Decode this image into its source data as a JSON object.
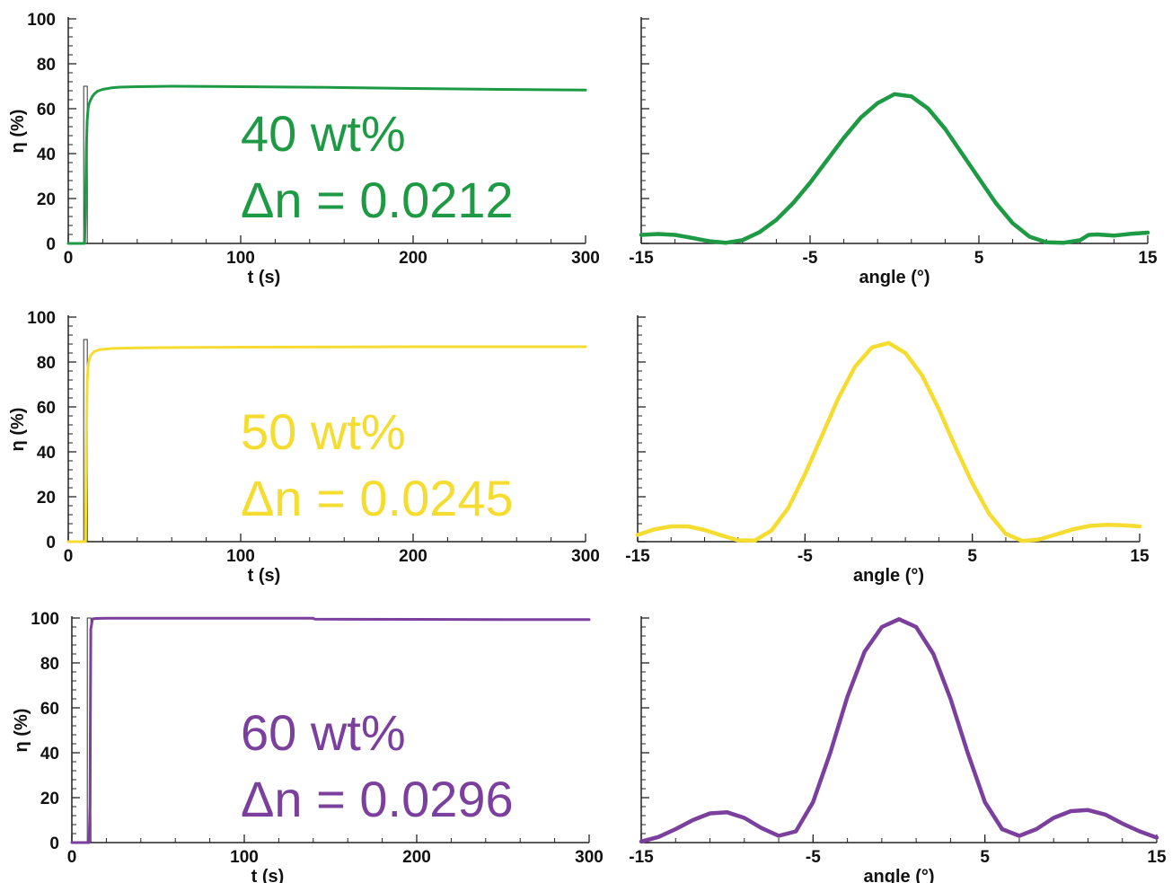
{
  "chart_data": [
    {
      "type": "line",
      "panel": "top-left",
      "xlabel": "t (s)",
      "ylabel": "η (%)",
      "xlim": [
        0,
        300
      ],
      "ylim": [
        0,
        100
      ],
      "xticks": [
        "0",
        "100",
        "200",
        "300"
      ],
      "yticks": [
        "0",
        "20",
        "40",
        "60",
        "80",
        "100"
      ],
      "color": "#1e9a45",
      "annotations": [
        "40 wt%",
        "Δn = 0.0212"
      ],
      "marker": {
        "x": 10,
        "top": 70
      },
      "series": [
        {
          "x": [
            0,
            9.5,
            10,
            10.5,
            11,
            11.5,
            12,
            13,
            14,
            15,
            17,
            20,
            25,
            30,
            40,
            60,
            100,
            150,
            200,
            250,
            300
          ],
          "values": [
            0,
            0,
            17,
            43,
            55,
            60,
            62,
            64,
            65.5,
            66.5,
            67.8,
            68.6,
            69.3,
            69.6,
            69.8,
            70,
            69.8,
            69.5,
            69,
            68.6,
            68.3
          ]
        }
      ]
    },
    {
      "type": "line",
      "panel": "top-right",
      "xlabel": "angle (°)",
      "xlim": [
        -15,
        15
      ],
      "ylim": [
        0,
        100
      ],
      "xticks": [
        "-15",
        "-5",
        "5",
        "15"
      ],
      "color": "#1e9a45",
      "series": [
        {
          "x": [
            -15,
            -14,
            -13,
            -12,
            -11,
            -10,
            -9,
            -8,
            -7,
            -6,
            -5,
            -4,
            -3,
            -2,
            -1,
            0,
            1,
            2,
            3,
            4,
            5,
            6,
            7,
            8,
            9,
            10,
            11,
            11.5,
            12,
            13,
            14,
            15
          ],
          "values": [
            3.8,
            4.2,
            3.8,
            2.5,
            1,
            0.3,
            1.5,
            5,
            10.5,
            18,
            27,
            37,
            47,
            56,
            62.5,
            66.5,
            65.5,
            60,
            51,
            40,
            29,
            18,
            9,
            3,
            0.5,
            0.3,
            1.5,
            3.8,
            4,
            3.5,
            4.3,
            4.8
          ]
        }
      ]
    },
    {
      "type": "line",
      "panel": "middle-left",
      "xlabel": "t (s)",
      "ylabel": "η (%)",
      "xlim": [
        0,
        300
      ],
      "ylim": [
        0,
        100
      ],
      "xticks": [
        "0",
        "100",
        "200",
        "300"
      ],
      "yticks": [
        "0",
        "20",
        "40",
        "60",
        "80",
        "100"
      ],
      "color": "#f5dc30",
      "annotations": [
        "50 wt%",
        "Δn = 0.0245"
      ],
      "marker": {
        "x": 10,
        "top": 90
      },
      "series": [
        {
          "x": [
            0,
            10,
            10.5,
            11,
            11.5,
            12,
            13,
            15,
            18,
            25,
            40,
            70,
            100,
            150,
            200,
            250,
            300
          ],
          "values": [
            0,
            0,
            41,
            71,
            78,
            80.5,
            83,
            84.6,
            85.5,
            86,
            86.3,
            86.5,
            86.6,
            86.7,
            86.8,
            86.8,
            86.8
          ]
        }
      ]
    },
    {
      "type": "line",
      "panel": "middle-right",
      "xlabel": "angle (°)",
      "xlim": [
        -15,
        15
      ],
      "ylim": [
        0,
        100
      ],
      "xticks": [
        "-15",
        "-5",
        "5",
        "15"
      ],
      "color": "#f5dc30",
      "series": [
        {
          "x": [
            -15,
            -14,
            -13,
            -12,
            -11,
            -10,
            -9,
            -8,
            -7,
            -6,
            -5,
            -4,
            -3,
            -2,
            -1,
            0,
            1,
            2,
            3,
            4,
            5,
            6,
            7,
            8,
            9,
            10,
            11,
            12,
            13,
            14,
            15
          ],
          "values": [
            3,
            5.5,
            6.8,
            6.8,
            5.2,
            2.8,
            0.6,
            0.5,
            5,
            15,
            30,
            47,
            64,
            78,
            86.5,
            88.5,
            84,
            74,
            59,
            42,
            26,
            12.5,
            3.5,
            0.3,
            1,
            3.2,
            5.5,
            7,
            7.5,
            7.3,
            6.8
          ]
        }
      ]
    },
    {
      "type": "line",
      "panel": "bottom-left",
      "xlabel": "t (s)",
      "ylabel": "η (%)",
      "xlim": [
        0,
        300
      ],
      "ylim": [
        0,
        100
      ],
      "xticks": [
        "0",
        "100",
        "200",
        "300"
      ],
      "yticks": [
        "0",
        "20",
        "40",
        "60",
        "80",
        "100"
      ],
      "color": "#7b3f9e",
      "annotations": [
        "60 wt%",
        "Δn = 0.0296"
      ],
      "marker": {
        "x": 10,
        "top": 100
      },
      "series": [
        {
          "x": [
            0,
            10,
            10.5,
            11,
            12,
            14,
            20,
            50,
            100,
            140,
            141,
            200,
            250,
            300
          ],
          "values": [
            0,
            0,
            17,
            95,
            99.6,
            99.8,
            99.9,
            99.9,
            99.9,
            99.9,
            99.5,
            99.4,
            99.3,
            99.3
          ]
        }
      ]
    },
    {
      "type": "line",
      "panel": "bottom-right",
      "xlabel": "angle (°)",
      "xlim": [
        -15,
        15
      ],
      "ylim": [
        0,
        100
      ],
      "xticks": [
        "-15",
        "-5",
        "5",
        "15"
      ],
      "color": "#7b3f9e",
      "series": [
        {
          "x": [
            -15,
            -14,
            -13,
            -12,
            -11,
            -10,
            -9,
            -8,
            -7,
            -6,
            -5,
            -4,
            -3,
            -2,
            -1,
            0,
            1,
            2,
            3,
            4,
            5,
            6,
            7,
            8,
            9,
            10,
            11,
            12,
            13,
            14,
            15
          ],
          "values": [
            0.5,
            2.5,
            6,
            10,
            13,
            13.5,
            11,
            6.5,
            3,
            5,
            18,
            40,
            65,
            85,
            96,
            99.5,
            96,
            84,
            64,
            40,
            18,
            6,
            3,
            6,
            11,
            14,
            14.5,
            12.5,
            8.5,
            5,
            2.2
          ]
        }
      ]
    }
  ]
}
